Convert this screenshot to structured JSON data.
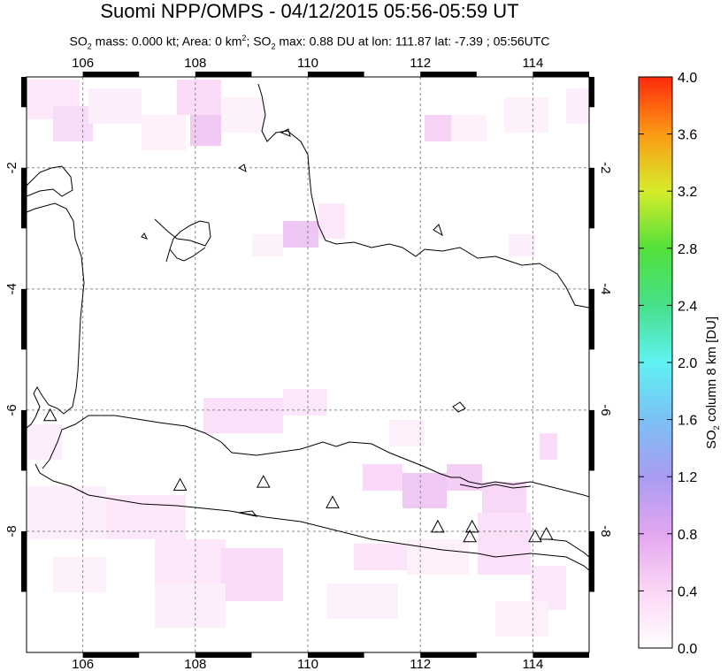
{
  "title": "Suomi NPP/OMPS - 04/12/2015 05:56-05:59 UT",
  "subtitle": {
    "so2_mass_label": "SO",
    "so2_mass_value": " mass: 0.000 kt; Area: 0 km",
    "area_sup": "2",
    "so2_max_text": "; SO",
    "so2_max_value": " max: 0.88 DU at lon: 111.87 lat: -7.39 ; 05:56UTC",
    "sub2": "2"
  },
  "map": {
    "lon_min": 105,
    "lon_max": 115,
    "lat_min": -10,
    "lat_max": -0.5,
    "lon_ticks": [
      "106",
      "108",
      "110",
      "112",
      "114"
    ],
    "lat_ticks": [
      "-2",
      "-4",
      "-6",
      "-8"
    ],
    "volcanoes": [
      {
        "lon": 105.42,
        "lat": -6.1
      },
      {
        "lon": 107.73,
        "lat": -7.25
      },
      {
        "lon": 109.21,
        "lat": -7.2
      },
      {
        "lon": 110.44,
        "lat": -7.54
      },
      {
        "lon": 112.31,
        "lat": -7.94
      },
      {
        "lon": 112.92,
        "lat": -7.94
      },
      {
        "lon": 112.88,
        "lat": -8.1
      },
      {
        "lon": 114.04,
        "lat": -8.1
      },
      {
        "lon": 114.24,
        "lat": -8.06
      }
    ]
  },
  "colorbar": {
    "title_prefix": "SO",
    "title_sub": "2",
    "title_suffix": " column 8 km [DU]",
    "ticks": [
      "4.0",
      "3.6",
      "3.2",
      "2.8",
      "2.4",
      "2.0",
      "1.6",
      "1.2",
      "0.8",
      "0.4",
      "0.0"
    ],
    "min": 0.0,
    "max": 4.0
  }
}
